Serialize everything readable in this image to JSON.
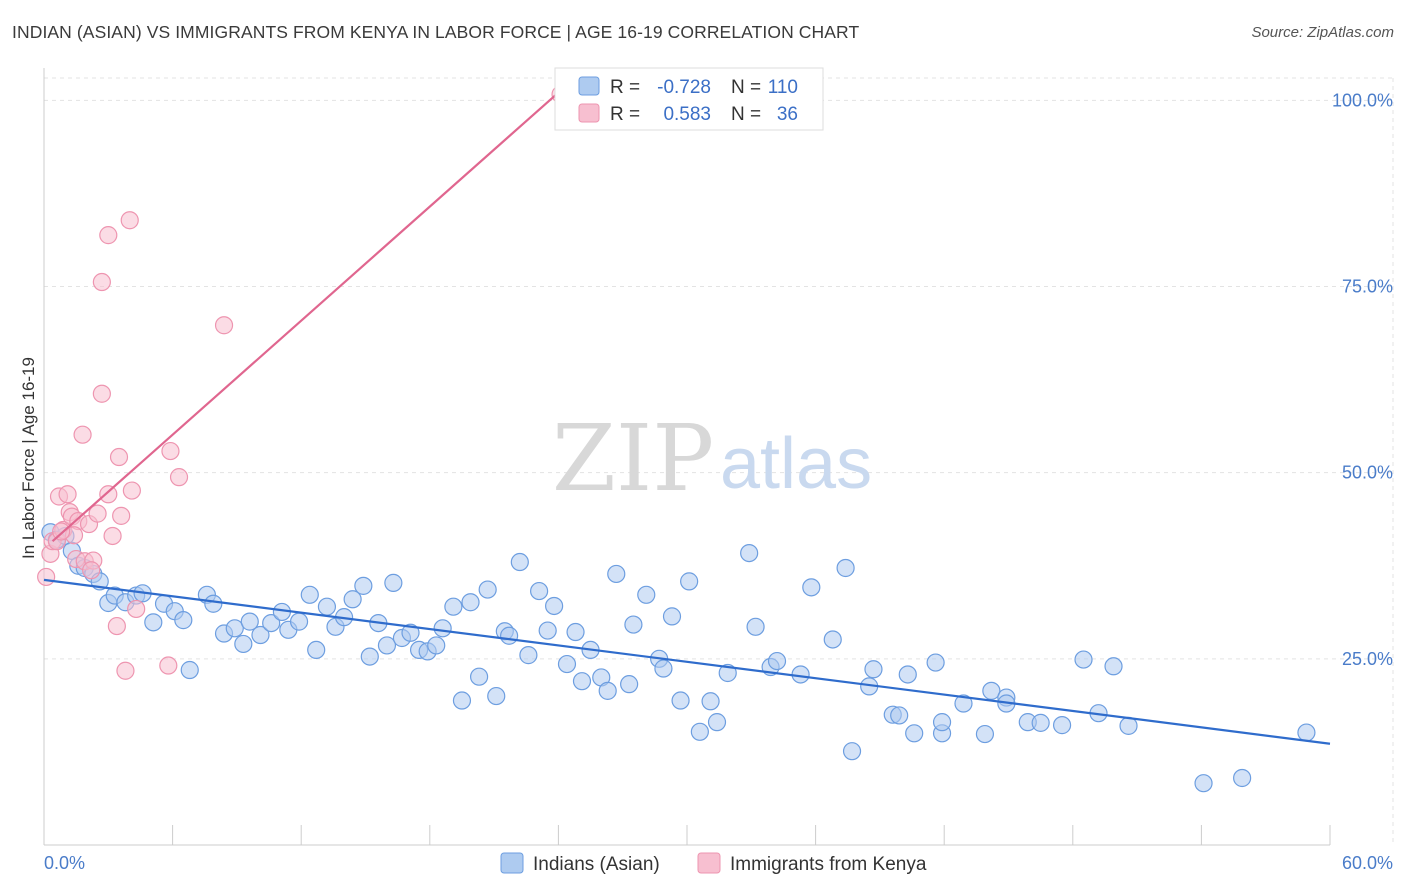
{
  "header": {
    "title": "INDIAN (ASIAN) VS IMMIGRANTS FROM KENYA IN LABOR FORCE | AGE 16-19 CORRELATION CHART",
    "source": "Source: ZipAtlas.com"
  },
  "watermark": {
    "zip": "ZIP",
    "atlas": "atlas"
  },
  "chart_data": {
    "type": "scatter",
    "title": "INDIAN (ASIAN) VS IMMIGRANTS FROM KENYA IN LABOR FORCE | AGE 16-19 CORRELATION CHART",
    "xlabel": "",
    "ylabel": "In Labor Force | Age 16-19",
    "xlim": [
      0,
      60
    ],
    "ylim": [
      0,
      103
    ],
    "x_tick_labels": [
      "0.0%",
      "60.0%"
    ],
    "y_ticks": [
      25,
      50,
      75,
      100
    ],
    "y_tick_labels": [
      "25.0%",
      "50.0%",
      "75.0%",
      "100.0%"
    ],
    "grid": true,
    "legend_position": "top-center",
    "colors": {
      "indians_fill": "#aecbf0",
      "indians_stroke": "#6d9ee0",
      "indians_line": "#2f6ccc",
      "kenya_fill": "#f7bfd0",
      "kenya_stroke": "#ee95b0",
      "kenya_line": "#e0668f"
    },
    "legend": [
      {
        "r_label": "R =",
        "r_value": "-0.728",
        "n_label": "N =",
        "n_value": "110"
      },
      {
        "r_label": "R =",
        "r_value": "0.583",
        "n_label": "N =",
        "n_value": "36"
      }
    ],
    "series": [
      {
        "name": "Indians (Asian)",
        "points": [
          [
            0.3,
            42.0
          ],
          [
            0.6,
            41.0
          ],
          [
            1.0,
            41.5
          ],
          [
            1.3,
            39.5
          ],
          [
            1.6,
            37.5
          ],
          [
            1.9,
            37.2
          ],
          [
            2.3,
            36.4
          ],
          [
            2.6,
            35.4
          ],
          [
            3.0,
            32.5
          ],
          [
            3.3,
            33.5
          ],
          [
            3.8,
            32.6
          ],
          [
            4.3,
            33.5
          ],
          [
            4.6,
            33.8
          ],
          [
            5.1,
            29.9
          ],
          [
            5.6,
            32.4
          ],
          [
            6.1,
            31.4
          ],
          [
            6.5,
            30.2
          ],
          [
            6.8,
            23.5
          ],
          [
            7.6,
            33.6
          ],
          [
            7.9,
            32.4
          ],
          [
            8.4,
            28.4
          ],
          [
            8.9,
            29.1
          ],
          [
            9.3,
            27.0
          ],
          [
            9.6,
            30.0
          ],
          [
            10.1,
            28.2
          ],
          [
            10.6,
            29.8
          ],
          [
            11.1,
            31.3
          ],
          [
            11.4,
            28.9
          ],
          [
            11.9,
            30.0
          ],
          [
            12.4,
            33.6
          ],
          [
            12.7,
            26.2
          ],
          [
            13.2,
            32.0
          ],
          [
            13.6,
            29.3
          ],
          [
            14.0,
            30.6
          ],
          [
            14.4,
            33.0
          ],
          [
            14.9,
            34.8
          ],
          [
            15.2,
            25.3
          ],
          [
            15.6,
            29.8
          ],
          [
            16.0,
            26.8
          ],
          [
            16.3,
            35.2
          ],
          [
            16.7,
            27.8
          ],
          [
            17.1,
            28.5
          ],
          [
            17.5,
            26.2
          ],
          [
            17.9,
            26.0
          ],
          [
            18.3,
            26.8
          ],
          [
            18.6,
            29.1
          ],
          [
            19.1,
            32.0
          ],
          [
            19.5,
            19.4
          ],
          [
            19.9,
            32.6
          ],
          [
            20.3,
            22.6
          ],
          [
            20.7,
            34.3
          ],
          [
            21.1,
            20.0
          ],
          [
            21.5,
            28.7
          ],
          [
            21.7,
            28.1
          ],
          [
            22.2,
            38.0
          ],
          [
            22.6,
            25.5
          ],
          [
            23.1,
            34.1
          ],
          [
            23.5,
            28.8
          ],
          [
            23.8,
            32.1
          ],
          [
            24.4,
            24.3
          ],
          [
            24.8,
            28.6
          ],
          [
            25.1,
            22.0
          ],
          [
            25.5,
            26.2
          ],
          [
            26.0,
            22.5
          ],
          [
            26.3,
            20.7
          ],
          [
            26.7,
            36.4
          ],
          [
            27.3,
            21.6
          ],
          [
            27.5,
            29.6
          ],
          [
            28.1,
            33.6
          ],
          [
            28.7,
            25.0
          ],
          [
            28.9,
            23.7
          ],
          [
            29.3,
            30.7
          ],
          [
            29.7,
            19.4
          ],
          [
            30.1,
            35.4
          ],
          [
            30.6,
            15.2
          ],
          [
            31.1,
            19.3
          ],
          [
            31.4,
            16.5
          ],
          [
            31.9,
            23.1
          ],
          [
            32.9,
            39.2
          ],
          [
            33.2,
            29.3
          ],
          [
            33.9,
            23.9
          ],
          [
            34.2,
            24.7
          ],
          [
            35.3,
            22.9
          ],
          [
            35.8,
            34.6
          ],
          [
            36.8,
            27.6
          ],
          [
            37.4,
            37.2
          ],
          [
            37.7,
            12.6
          ],
          [
            38.5,
            21.3
          ],
          [
            38.7,
            23.6
          ],
          [
            39.6,
            17.5
          ],
          [
            39.9,
            17.4
          ],
          [
            40.3,
            22.9
          ],
          [
            40.6,
            15.0
          ],
          [
            41.6,
            24.5
          ],
          [
            41.9,
            15.0
          ],
          [
            41.9,
            16.5
          ],
          [
            42.9,
            19.0
          ],
          [
            43.9,
            14.9
          ],
          [
            44.2,
            20.7
          ],
          [
            44.9,
            19.8
          ],
          [
            44.9,
            19.0
          ],
          [
            45.9,
            16.5
          ],
          [
            46.5,
            16.4
          ],
          [
            47.5,
            16.1
          ],
          [
            48.5,
            24.9
          ],
          [
            49.2,
            17.7
          ],
          [
            49.9,
            24.0
          ],
          [
            50.6,
            16.0
          ],
          [
            54.1,
            8.3
          ],
          [
            55.9,
            9.0
          ],
          [
            58.9,
            15.1
          ]
        ],
        "trend": {
          "x": [
            0.0,
            60.0
          ],
          "y": [
            35.6,
            13.6
          ]
        }
      },
      {
        "name": "Immigrants from Kenya",
        "points": [
          [
            0.1,
            36.0
          ],
          [
            0.3,
            39.1
          ],
          [
            0.4,
            40.8
          ],
          [
            0.6,
            40.8
          ],
          [
            0.7,
            46.8
          ],
          [
            0.9,
            42.3
          ],
          [
            1.1,
            47.1
          ],
          [
            1.2,
            44.7
          ],
          [
            1.3,
            44.1
          ],
          [
            1.5,
            38.4
          ],
          [
            1.6,
            43.5
          ],
          [
            1.8,
            55.1
          ],
          [
            1.9,
            38.1
          ],
          [
            2.1,
            43.1
          ],
          [
            2.3,
            38.2
          ],
          [
            2.5,
            44.5
          ],
          [
            2.7,
            60.6
          ],
          [
            2.7,
            75.6
          ],
          [
            3.0,
            47.1
          ],
          [
            3.0,
            81.9
          ],
          [
            3.4,
            29.4
          ],
          [
            3.5,
            52.1
          ],
          [
            3.6,
            44.2
          ],
          [
            3.8,
            23.4
          ],
          [
            4.0,
            83.9
          ],
          [
            4.1,
            47.6
          ],
          [
            4.3,
            31.7
          ],
          [
            5.8,
            24.1
          ],
          [
            5.9,
            52.9
          ],
          [
            6.3,
            49.4
          ],
          [
            8.4,
            69.8
          ],
          [
            24.1,
            100.8
          ],
          [
            3.2,
            41.5
          ],
          [
            1.4,
            41.6
          ],
          [
            2.2,
            36.9
          ],
          [
            0.8,
            42.1
          ]
        ],
        "trend": {
          "x": [
            0.4,
            24.1
          ],
          "y": [
            40.8,
            101.3
          ]
        }
      }
    ]
  }
}
